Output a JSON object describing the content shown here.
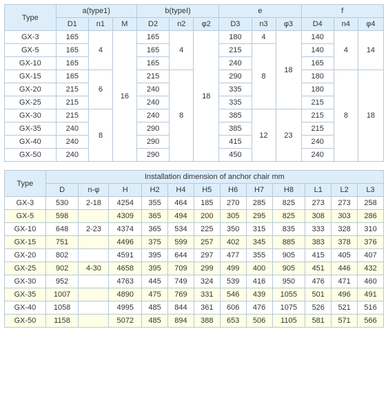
{
  "table1": {
    "header1": {
      "type": "Type",
      "a": "a(type1)",
      "b": "b(typeI)",
      "e": "e",
      "f": "f"
    },
    "header2": {
      "D1": "D1",
      "n1": "n1",
      "M": "M",
      "D2": "D2",
      "n2": "n2",
      "phi2": "φ2",
      "D3": "D3",
      "n3": "n3",
      "phi3": "φ3",
      "D4": "D4",
      "n4": "n4",
      "phi4": "φ4"
    },
    "types": [
      "GX-3",
      "GX-5",
      "GX-10",
      "GX-15",
      "GX-20",
      "GX-25",
      "GX-30",
      "GX-35",
      "GX-40",
      "GX-50"
    ],
    "D1": [
      "165",
      "165",
      "165",
      "165",
      "215",
      "215",
      "215",
      "240",
      "240",
      "240"
    ],
    "n1": {
      "g1": "4",
      "g2": "6",
      "g3": "8"
    },
    "M": "16",
    "D2": [
      "165",
      "165",
      "165",
      "215",
      "240",
      "240",
      "240",
      "290",
      "290",
      "290"
    ],
    "n2": {
      "g1": "4",
      "g2": "8"
    },
    "phi2": "18",
    "D3": [
      "180",
      "215",
      "240",
      "290",
      "335",
      "335",
      "385",
      "385",
      "415",
      "450"
    ],
    "n3": {
      "g1": "4",
      "g2": "8",
      "g3": "12"
    },
    "phi3": {
      "g1": "18",
      "g2": "23"
    },
    "D4": [
      "140",
      "140",
      "165",
      "180",
      "180",
      "215",
      "215",
      "215",
      "240",
      "240"
    ],
    "n4": {
      "g1": "4",
      "g2": "8"
    },
    "phi4": {
      "g1": "14",
      "g2": "18"
    },
    "colors": {
      "header_bg": "#ddeefa",
      "border": "#b7c8d8"
    }
  },
  "table2": {
    "caption": "Installation dimension of anchor chair mm",
    "type_h": "Type",
    "cols": [
      "D",
      "n-φ",
      "H",
      "H2",
      "H4",
      "H5",
      "H6",
      "H7",
      "H8",
      "L1",
      "L2",
      "L3"
    ],
    "rows": [
      {
        "t": "GX-3",
        "v": [
          "530",
          "2-18",
          "4254",
          "355",
          "464",
          "185",
          "270",
          "285",
          "825",
          "273",
          "273",
          "258"
        ]
      },
      {
        "t": "GX-5",
        "v": [
          "598",
          "",
          "4309",
          "365",
          "494",
          "200",
          "305",
          "295",
          "825",
          "308",
          "303",
          "286"
        ]
      },
      {
        "t": "GX-10",
        "v": [
          "648",
          "2-23",
          "4374",
          "365",
          "534",
          "225",
          "350",
          "315",
          "835",
          "333",
          "328",
          "310"
        ]
      },
      {
        "t": "GX-15",
        "v": [
          "751",
          "",
          "4496",
          "375",
          "599",
          "257",
          "402",
          "345",
          "885",
          "383",
          "378",
          "376"
        ]
      },
      {
        "t": "GX-20",
        "v": [
          "802",
          "",
          "4591",
          "395",
          "644",
          "297",
          "477",
          "355",
          "905",
          "415",
          "405",
          "407"
        ]
      },
      {
        "t": "GX-25",
        "v": [
          "902",
          "4-30",
          "4658",
          "395",
          "709",
          "299",
          "499",
          "400",
          "905",
          "451",
          "446",
          "432"
        ]
      },
      {
        "t": "GX-30",
        "v": [
          "952",
          "",
          "4763",
          "445",
          "749",
          "324",
          "539",
          "416",
          "950",
          "476",
          "471",
          "460"
        ]
      },
      {
        "t": "GX-35",
        "v": [
          "1007",
          "",
          "4890",
          "475",
          "769",
          "331",
          "546",
          "439",
          "1055",
          "501",
          "496",
          "491"
        ]
      },
      {
        "t": "GX-40",
        "v": [
          "1058",
          "",
          "4995",
          "485",
          "844",
          "361",
          "606",
          "476",
          "1075",
          "526",
          "521",
          "516"
        ]
      },
      {
        "t": "GX-50",
        "v": [
          "1158",
          "",
          "5072",
          "485",
          "894",
          "388",
          "653",
          "506",
          "1105",
          "581",
          "571",
          "566"
        ]
      }
    ],
    "colors": {
      "header_bg": "#ddeefa",
      "alt_bg": "#ffffe6",
      "border": "#b7c8d8"
    }
  }
}
